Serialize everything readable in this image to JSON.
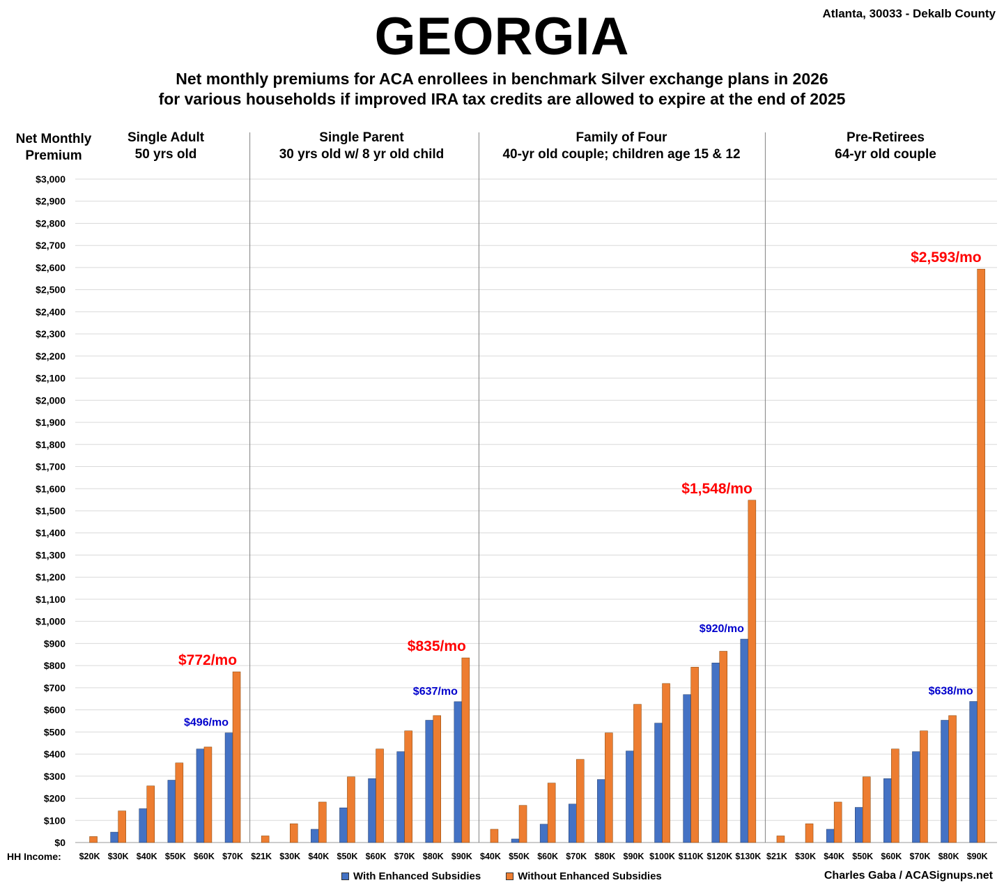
{
  "header": {
    "title": "GEORGIA",
    "location": "Atlanta, 30033 - Dekalb County",
    "subtitle1": "Net monthly premiums for ACA enrollees in benchmark Silver exchange plans in 2026",
    "subtitle2": "for various households if improved IRA tax credits are allowed to expire at the end of 2025"
  },
  "footer": {
    "source": "Charles Gaba / ACASignups.net"
  },
  "colors": {
    "with": "#4472C4",
    "without": "#ED7D31",
    "red_label": "#FF0000",
    "blue_label": "#0000CC",
    "grid": "#D9D9D9",
    "divider": "#808080"
  },
  "chart_data": {
    "type": "bar",
    "ylabel_line1": "Net Monthly",
    "ylabel_line2": "Premium",
    "xlabel": "HH Income:",
    "ylim": [
      0,
      3000
    ],
    "ytick_step": 100,
    "grid": true,
    "legend_position": "bottom",
    "series_names": [
      "With Enhanced Subsidies",
      "Without Enhanced Subsidies"
    ],
    "groups": [
      {
        "title_line1": "Single Adult",
        "title_line2": "50 yrs old",
        "categories": [
          "$20K",
          "$30K",
          "$40K",
          "$50K",
          "$60K",
          "$70K"
        ],
        "with": [
          0,
          47,
          153,
          282,
          423,
          496
        ],
        "without": [
          27,
          143,
          256,
          360,
          432,
          772
        ],
        "with_label": "$496/mo",
        "without_label": "$772/mo"
      },
      {
        "title_line1": "Single Parent",
        "title_line2": "30 yrs old w/ 8 yr old child",
        "categories": [
          "$21K",
          "$30K",
          "$40K",
          "$50K",
          "$60K",
          "$70K",
          "$80K",
          "$90K"
        ],
        "with": [
          0,
          0,
          60,
          157,
          289,
          411,
          553,
          637
        ],
        "without": [
          30,
          85,
          183,
          297,
          423,
          505,
          574,
          835
        ],
        "with_label": "$637/mo",
        "without_label": "$835/mo"
      },
      {
        "title_line1": "Family of Four",
        "title_line2": "40-yr old couple; children age 15 & 12",
        "categories": [
          "$40K",
          "$50K",
          "$60K",
          "$70K",
          "$80K",
          "$90K",
          "$100K",
          "$110K",
          "$120K",
          "$130K"
        ],
        "with": [
          0,
          16,
          83,
          174,
          285,
          414,
          540,
          669,
          812,
          920
        ],
        "without": [
          60,
          168,
          269,
          376,
          496,
          625,
          719,
          793,
          865,
          1548
        ],
        "with_label": "$920/mo",
        "without_label": "$1,548/mo"
      },
      {
        "title_line1": "Pre-Retirees",
        "title_line2": "64-yr old couple",
        "categories": [
          "$21K",
          "$30K",
          "$40K",
          "$50K",
          "$60K",
          "$70K",
          "$80K",
          "$90K"
        ],
        "with": [
          0,
          0,
          60,
          159,
          289,
          411,
          553,
          638
        ],
        "without": [
          30,
          85,
          183,
          297,
          423,
          505,
          574,
          2593
        ],
        "with_label": "$638/mo",
        "without_label": "$2,593/mo"
      }
    ]
  }
}
